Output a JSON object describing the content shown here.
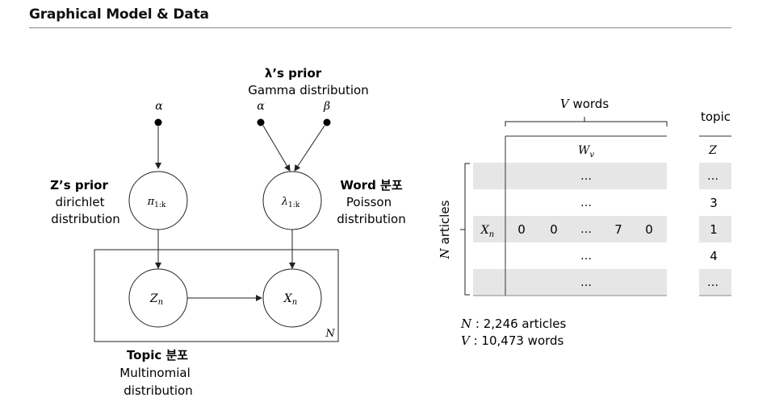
{
  "header": {
    "title": "Graphical Model & Data"
  },
  "model": {
    "alpha_left": "α",
    "lambda_prior_title": "λ’s prior",
    "lambda_prior_sub": "Gamma distribution",
    "alpha_right": "α",
    "beta": "β",
    "z_prior_title": "Z’s prior",
    "z_prior_sub1": "dirichlet",
    "z_prior_sub2": "distribution",
    "word_title": "Word 분포",
    "word_sub1": "Poisson",
    "word_sub2": "distribution",
    "pi_node": "π",
    "pi_sub": "1:k",
    "lambda_node": "λ",
    "lambda_sub": "1:k",
    "z_node": "Z",
    "z_sub": "n",
    "x_node": "X",
    "x_sub": "n",
    "plate_label": "N",
    "topic_title": "Topic 분포",
    "topic_sub1": "Multinomial",
    "topic_sub2": "distribution"
  },
  "data_table": {
    "v_words_var": "V",
    "v_words_text": " words",
    "n_articles_var": "N",
    "n_articles_text": " articles",
    "col_header": "W",
    "col_header_sub": "v",
    "row_label": "X",
    "row_label_sub": "n",
    "rows": [
      {
        "cells": [
          "…"
        ]
      },
      {
        "cells": [
          "…"
        ]
      },
      {
        "cells": [
          "0",
          "0",
          "…",
          "7",
          "0"
        ]
      },
      {
        "cells": [
          "…"
        ]
      },
      {
        "cells": [
          "…"
        ]
      }
    ],
    "topic_header": "topic",
    "topic_col": "Z",
    "topic_values": [
      "…",
      "3",
      "1",
      "4",
      "…"
    ]
  },
  "stats": {
    "n_var": "N",
    "n_text": " : 2,246 articles",
    "v_var": "V",
    "v_text": " : 10,473 words"
  }
}
